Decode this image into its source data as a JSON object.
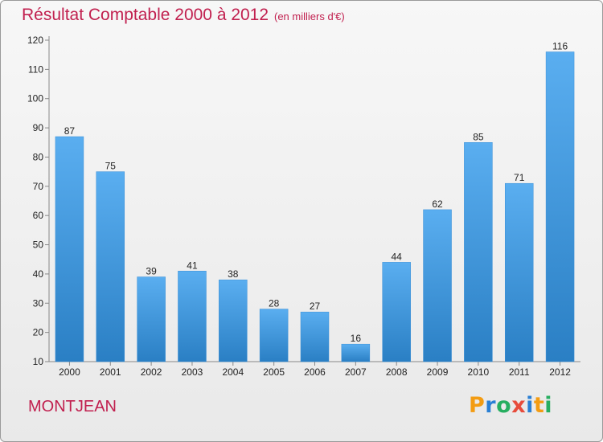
{
  "title": "Résultat Comptable 2000 à 2012",
  "subtitle": "(en milliers d'€)",
  "commune": "MONTJEAN",
  "logo": {
    "letters": [
      "P",
      "r",
      "o",
      "x",
      "i",
      "t",
      "i"
    ],
    "colors": [
      "#f39c12",
      "#2a7fd4",
      "#27ae60",
      "#e74c3c",
      "#2a7fd4",
      "#f39c12",
      "#27ae60"
    ]
  },
  "colors": {
    "bar_top": "#5aaef0",
    "bar_bottom": "#2a7fc4",
    "text": "#c1204f"
  },
  "chart_data": {
    "type": "bar",
    "categories": [
      "2000",
      "2001",
      "2002",
      "2003",
      "2004",
      "2005",
      "2006",
      "2007",
      "2008",
      "2009",
      "2010",
      "2011",
      "2012"
    ],
    "values": [
      87,
      75,
      39,
      41,
      38,
      28,
      27,
      16,
      44,
      62,
      85,
      71,
      116
    ],
    "ylim": [
      10,
      120
    ],
    "yticks": [
      10,
      20,
      30,
      40,
      50,
      60,
      70,
      80,
      90,
      100,
      110,
      120
    ],
    "grid": false,
    "title": "Résultat Comptable 2000 à 2012",
    "xlabel": "",
    "ylabel": ""
  }
}
